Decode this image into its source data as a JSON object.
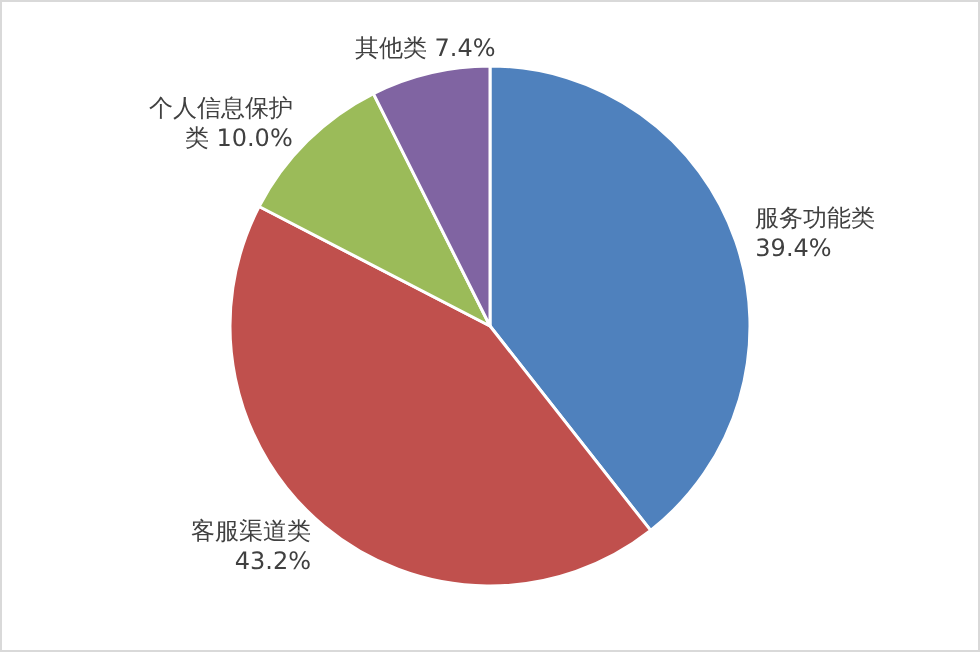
{
  "chart_data": {
    "type": "pie",
    "categories": [
      "服务功能类",
      "客服渠道类",
      "个人信息保护类",
      "其他类"
    ],
    "values": [
      39.4,
      43.2,
      10.0,
      7.4
    ],
    "value_labels": [
      "39.4%",
      "43.2%",
      "10.0%",
      "7.4%"
    ],
    "colors": [
      "#4f81bd",
      "#c0504d",
      "#9bbb59",
      "#8064a2"
    ]
  }
}
